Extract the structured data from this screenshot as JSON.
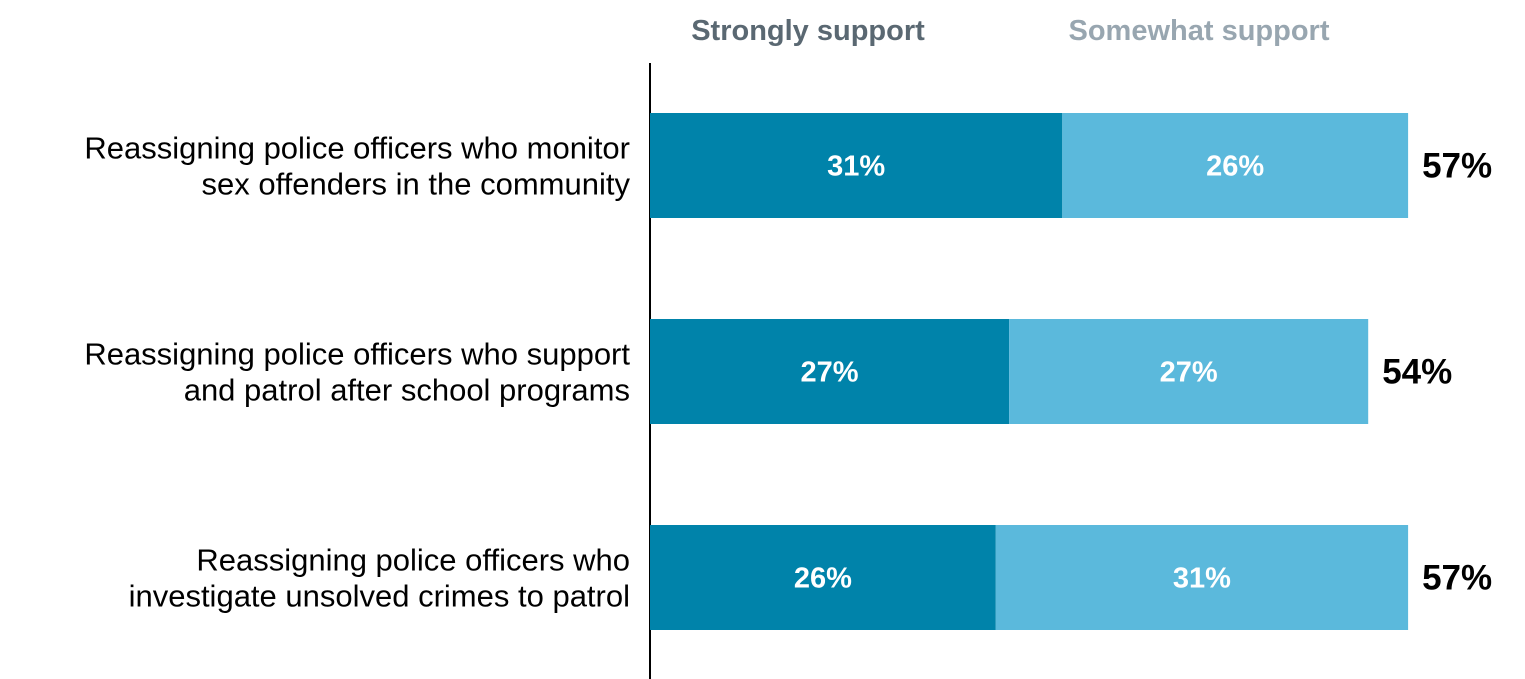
{
  "chart_data": {
    "type": "bar",
    "orientation": "horizontal",
    "stacked": true,
    "categories": [
      [
        "Reassigning police officers who monitor",
        "sex offenders in the community"
      ],
      [
        "Reassigning police officers who support",
        "and patrol after school programs"
      ],
      [
        "Reassigning police officers who",
        "investigate unsolved crimes to patrol"
      ]
    ],
    "series": [
      {
        "name": "Strongly support",
        "values": [
          31,
          27,
          26
        ],
        "labels": [
          "31%",
          "27%",
          "26%"
        ],
        "color": "#0083aa"
      },
      {
        "name": "Somewhat support",
        "values": [
          26,
          27,
          31
        ],
        "labels": [
          "26%",
          "27%",
          "31%"
        ],
        "color": "#5bb9dc"
      }
    ],
    "totals": [
      "57%",
      "54%",
      "57%"
    ],
    "legend": {
      "placement": "top",
      "colors": [
        "#5a6872",
        "#98a6b0"
      ]
    },
    "xlim": [
      0,
      57
    ],
    "grid": false
  }
}
